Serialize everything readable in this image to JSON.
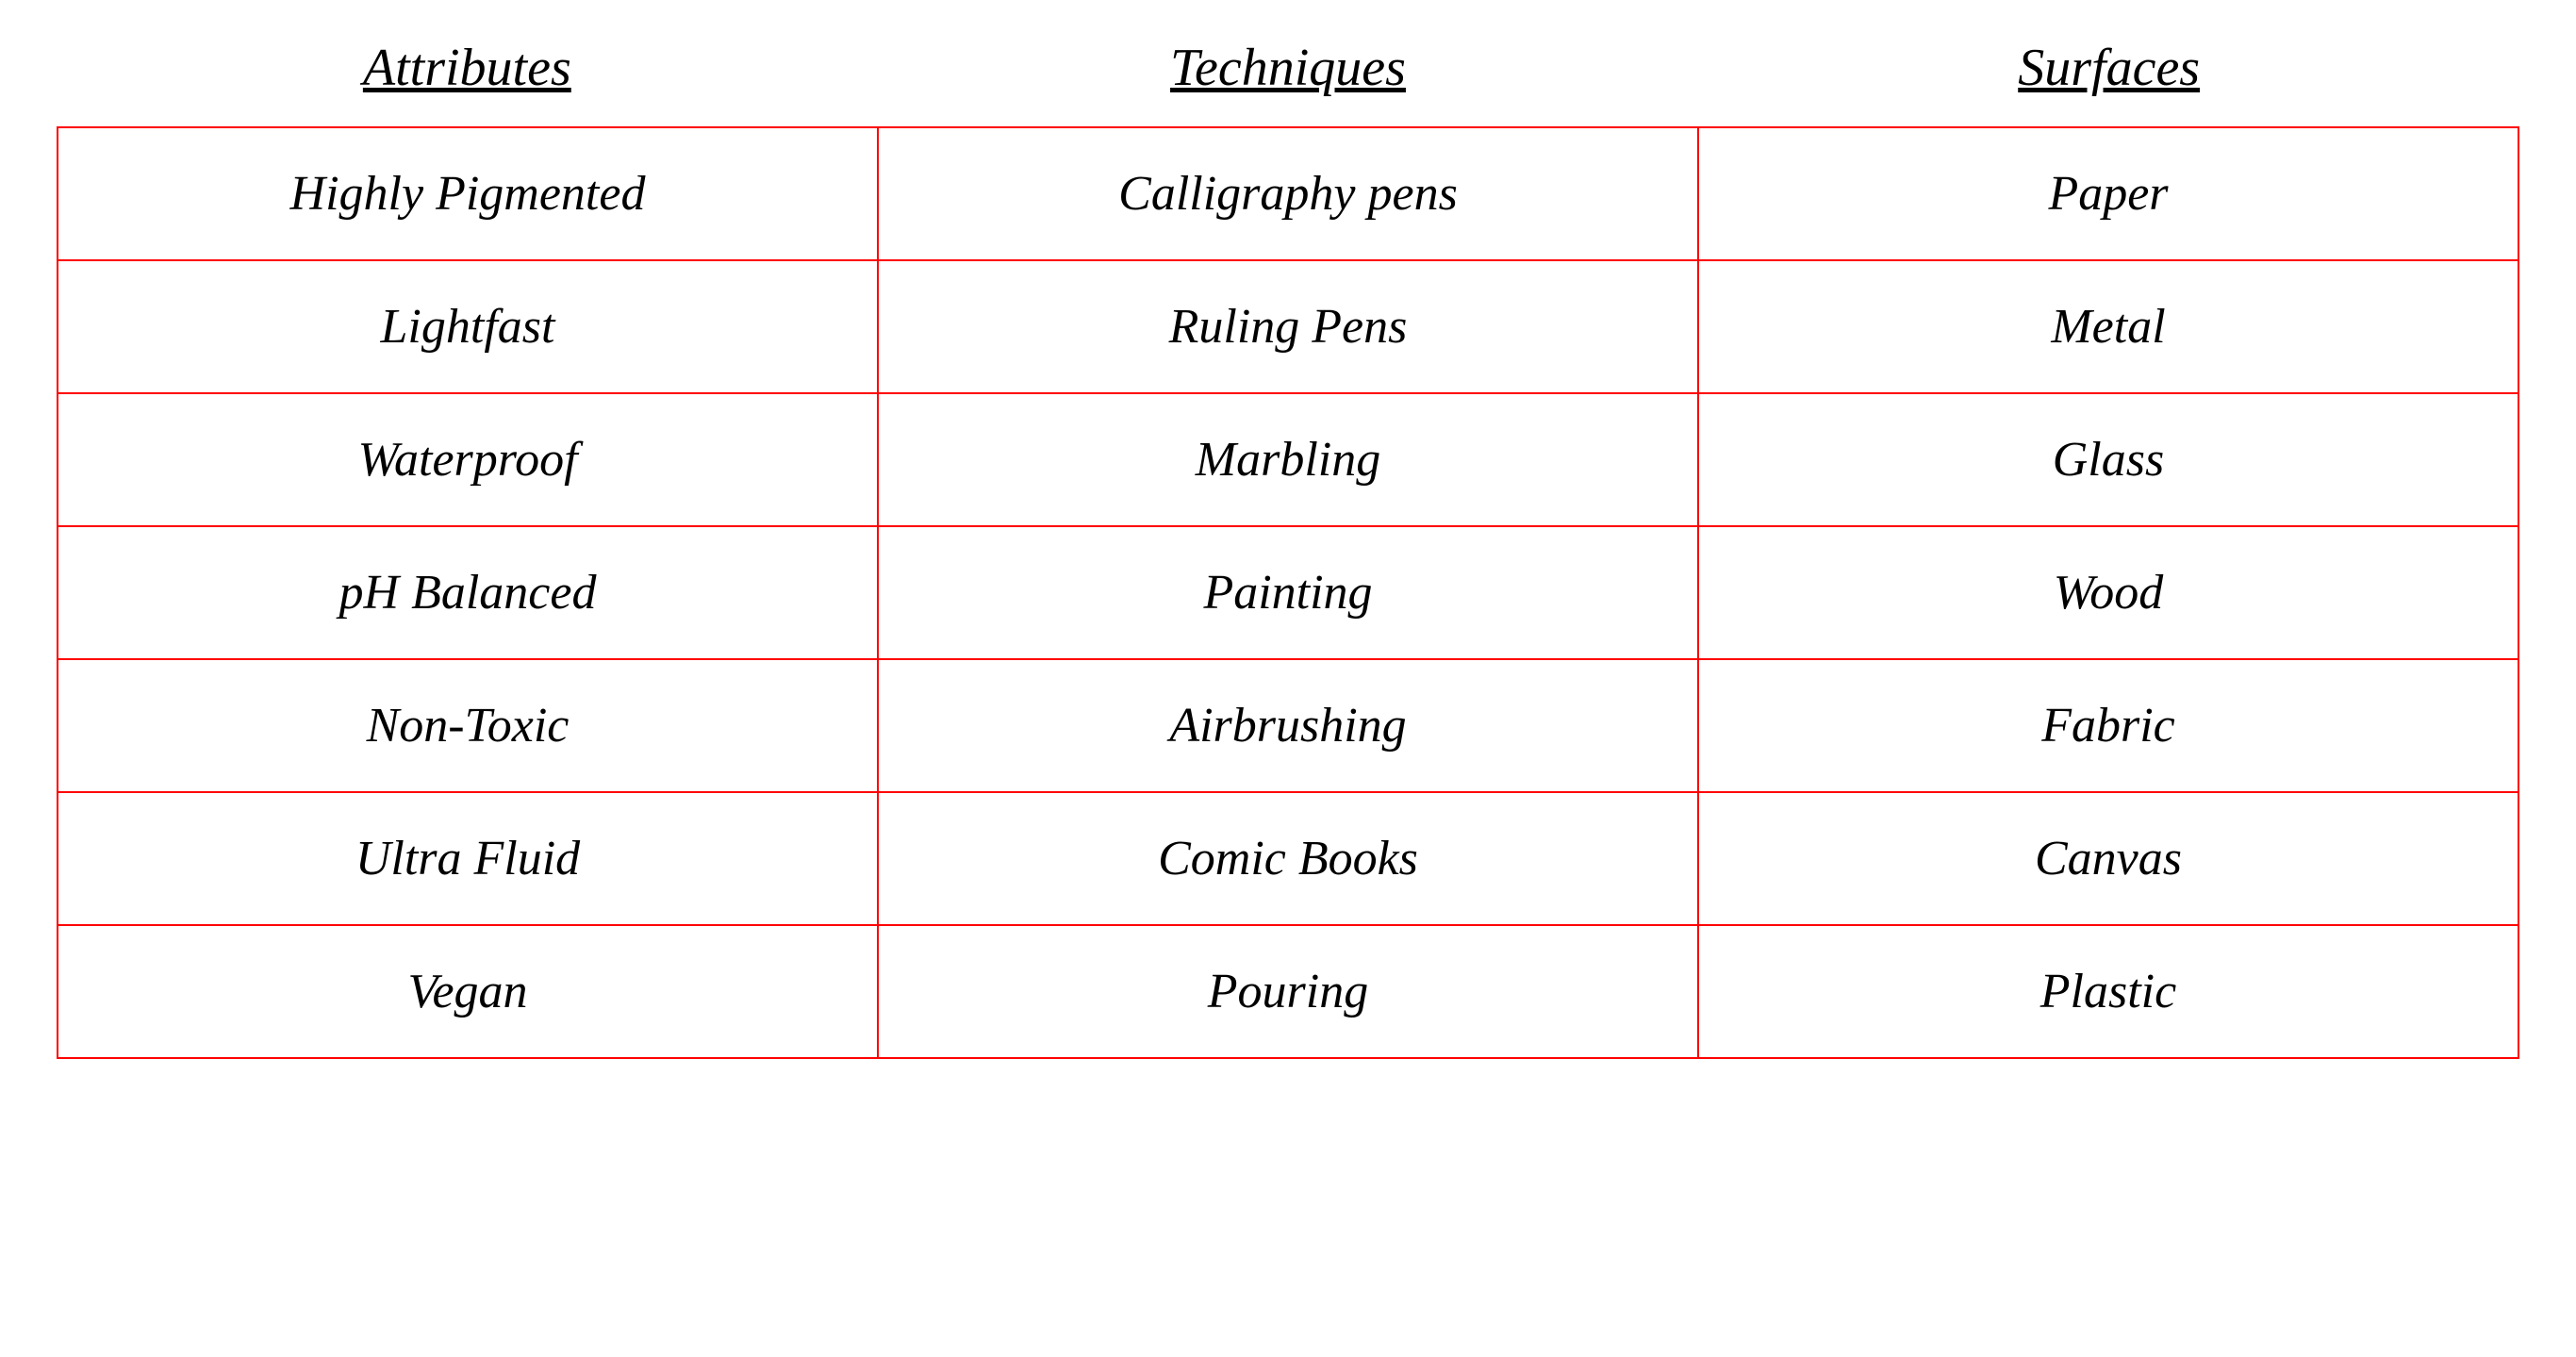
{
  "table": {
    "type": "table",
    "columns": [
      "Attributes",
      "Techniques",
      "Surfaces"
    ],
    "rows": [
      [
        "Highly Pigmented",
        "Calligraphy pens",
        "Paper"
      ],
      [
        "Lightfast",
        "Ruling Pens",
        "Metal"
      ],
      [
        "Waterproof",
        "Marbling",
        "Glass"
      ],
      [
        "pH Balanced",
        "Painting",
        "Wood"
      ],
      [
        "Non-Toxic",
        "Airbrushing",
        "Fabric"
      ],
      [
        "Ultra Fluid",
        "Comic Books",
        "Canvas"
      ],
      [
        "Vegan",
        "Pouring",
        "Plastic"
      ]
    ],
    "border_color": "#ff0000",
    "border_width": 2,
    "background_color": "#ffffff",
    "text_color": "#000000",
    "header_fontsize": 56,
    "cell_fontsize": 52,
    "font_family": "Georgia, 'Times New Roman', serif",
    "font_style": "italic",
    "header_underline": true,
    "cell_padding_vertical": 40,
    "cell_padding_horizontal": 20,
    "column_widths": [
      "33.333%",
      "33.333%",
      "33.333%"
    ],
    "text_align": "center"
  }
}
